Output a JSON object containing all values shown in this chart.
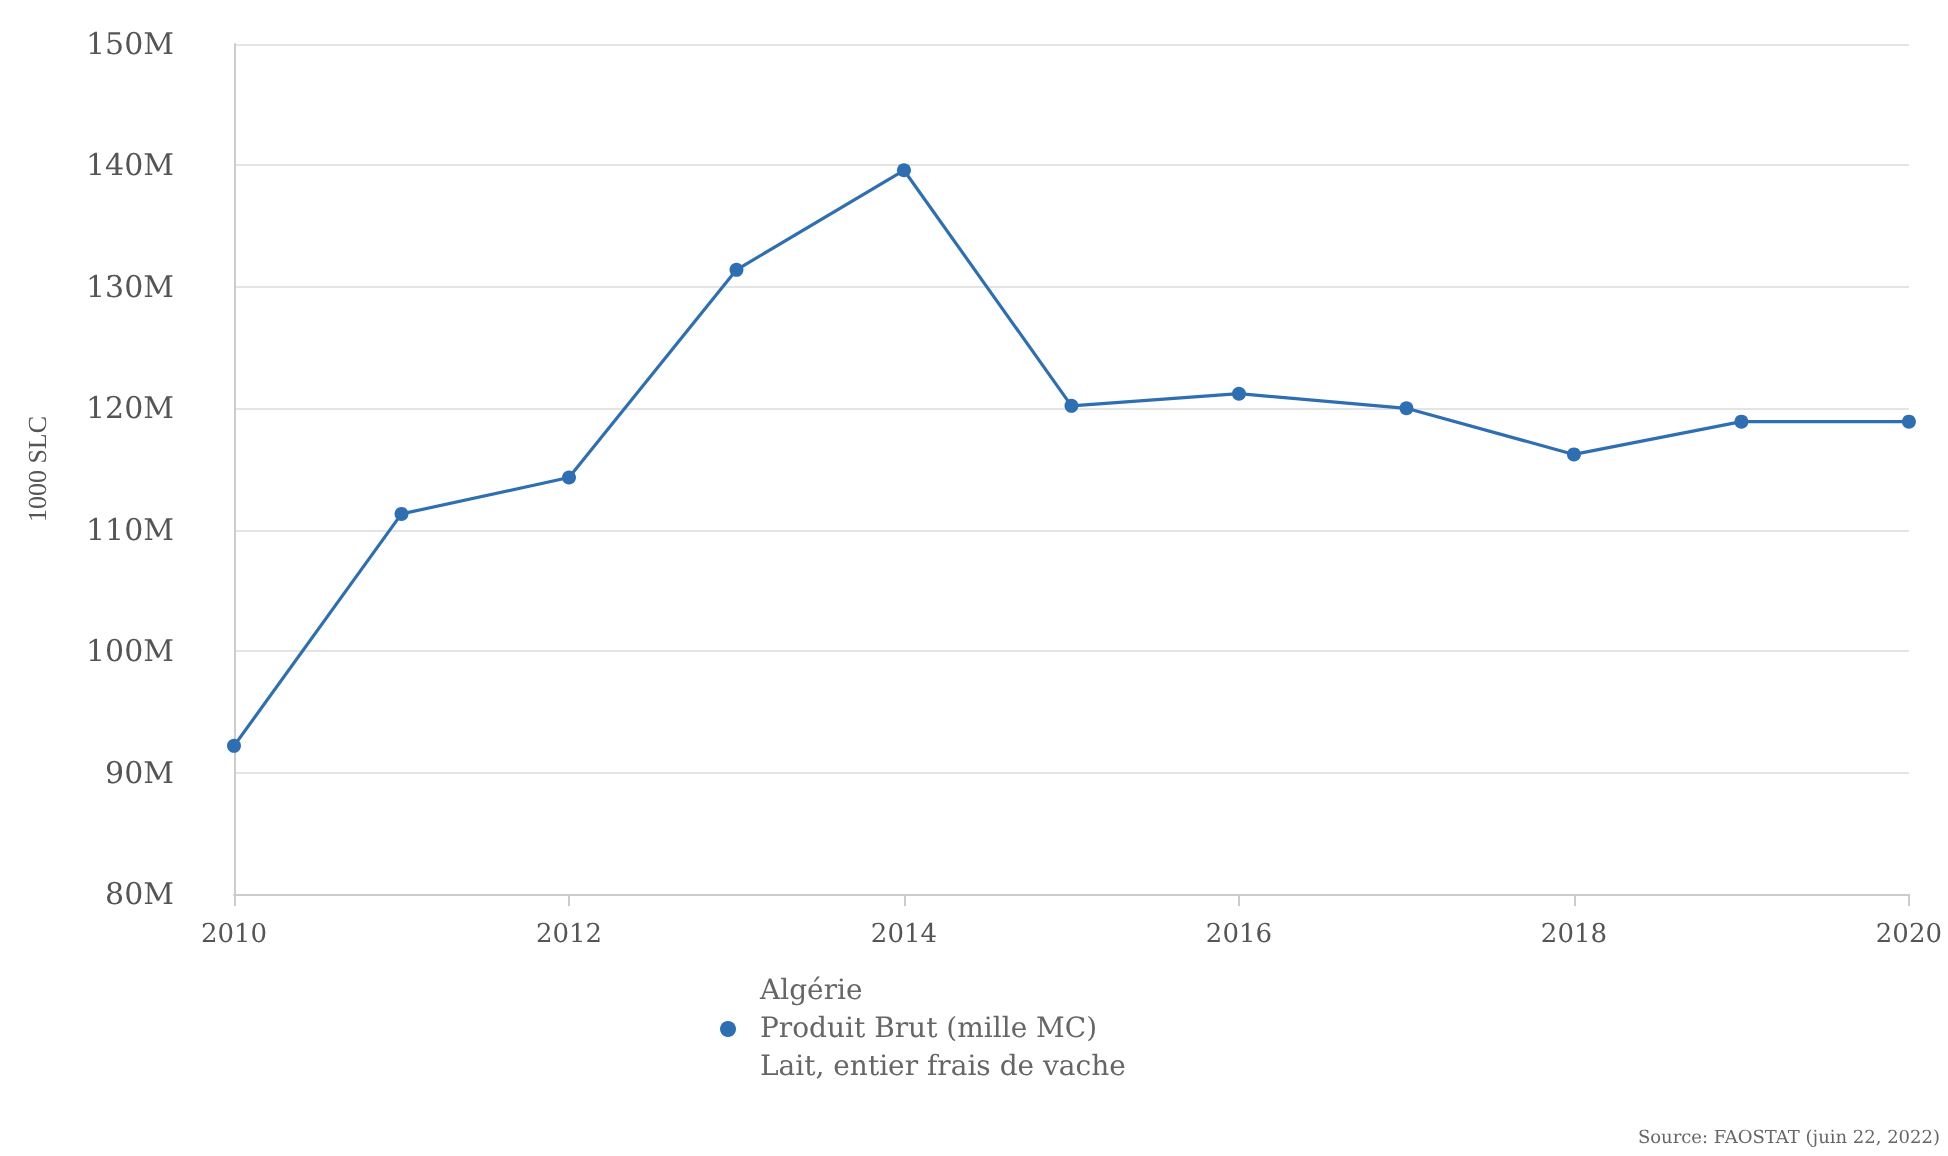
{
  "chart_data": {
    "type": "line",
    "ylabel": "1000 SLC",
    "x": [
      2010,
      2011,
      2012,
      2013,
      2014,
      2015,
      2016,
      2017,
      2018,
      2019,
      2020
    ],
    "series": [
      {
        "name": "Algérie\nProduit Brut (mille MC)\nLait, entier frais de vache",
        "color": "#2e6fb3",
        "values": [
          92200000,
          111300000,
          114300000,
          131400000,
          139600000,
          120200000,
          121200000,
          120000000,
          116200000,
          118900000,
          118900000
        ]
      }
    ],
    "xlim": [
      2010,
      2020
    ],
    "xticks": [
      2010,
      2012,
      2014,
      2016,
      2018,
      2020
    ],
    "ylim": [
      80000000,
      150000000
    ],
    "yticks": [
      {
        "value": 80000000,
        "label": "80M"
      },
      {
        "value": 90000000,
        "label": "90M"
      },
      {
        "value": 100000000,
        "label": "100M"
      },
      {
        "value": 110000000,
        "label": "110M"
      },
      {
        "value": 120000000,
        "label": "120M"
      },
      {
        "value": 130000000,
        "label": "130M"
      },
      {
        "value": 140000000,
        "label": "140M"
      },
      {
        "value": 150000000,
        "label": "150M"
      }
    ],
    "grid": "y",
    "legend": "bottom",
    "marker": "circle",
    "line_style": "solid",
    "annotations": [
      "Source: FAOSTAT (juin 22, 2022)"
    ]
  }
}
